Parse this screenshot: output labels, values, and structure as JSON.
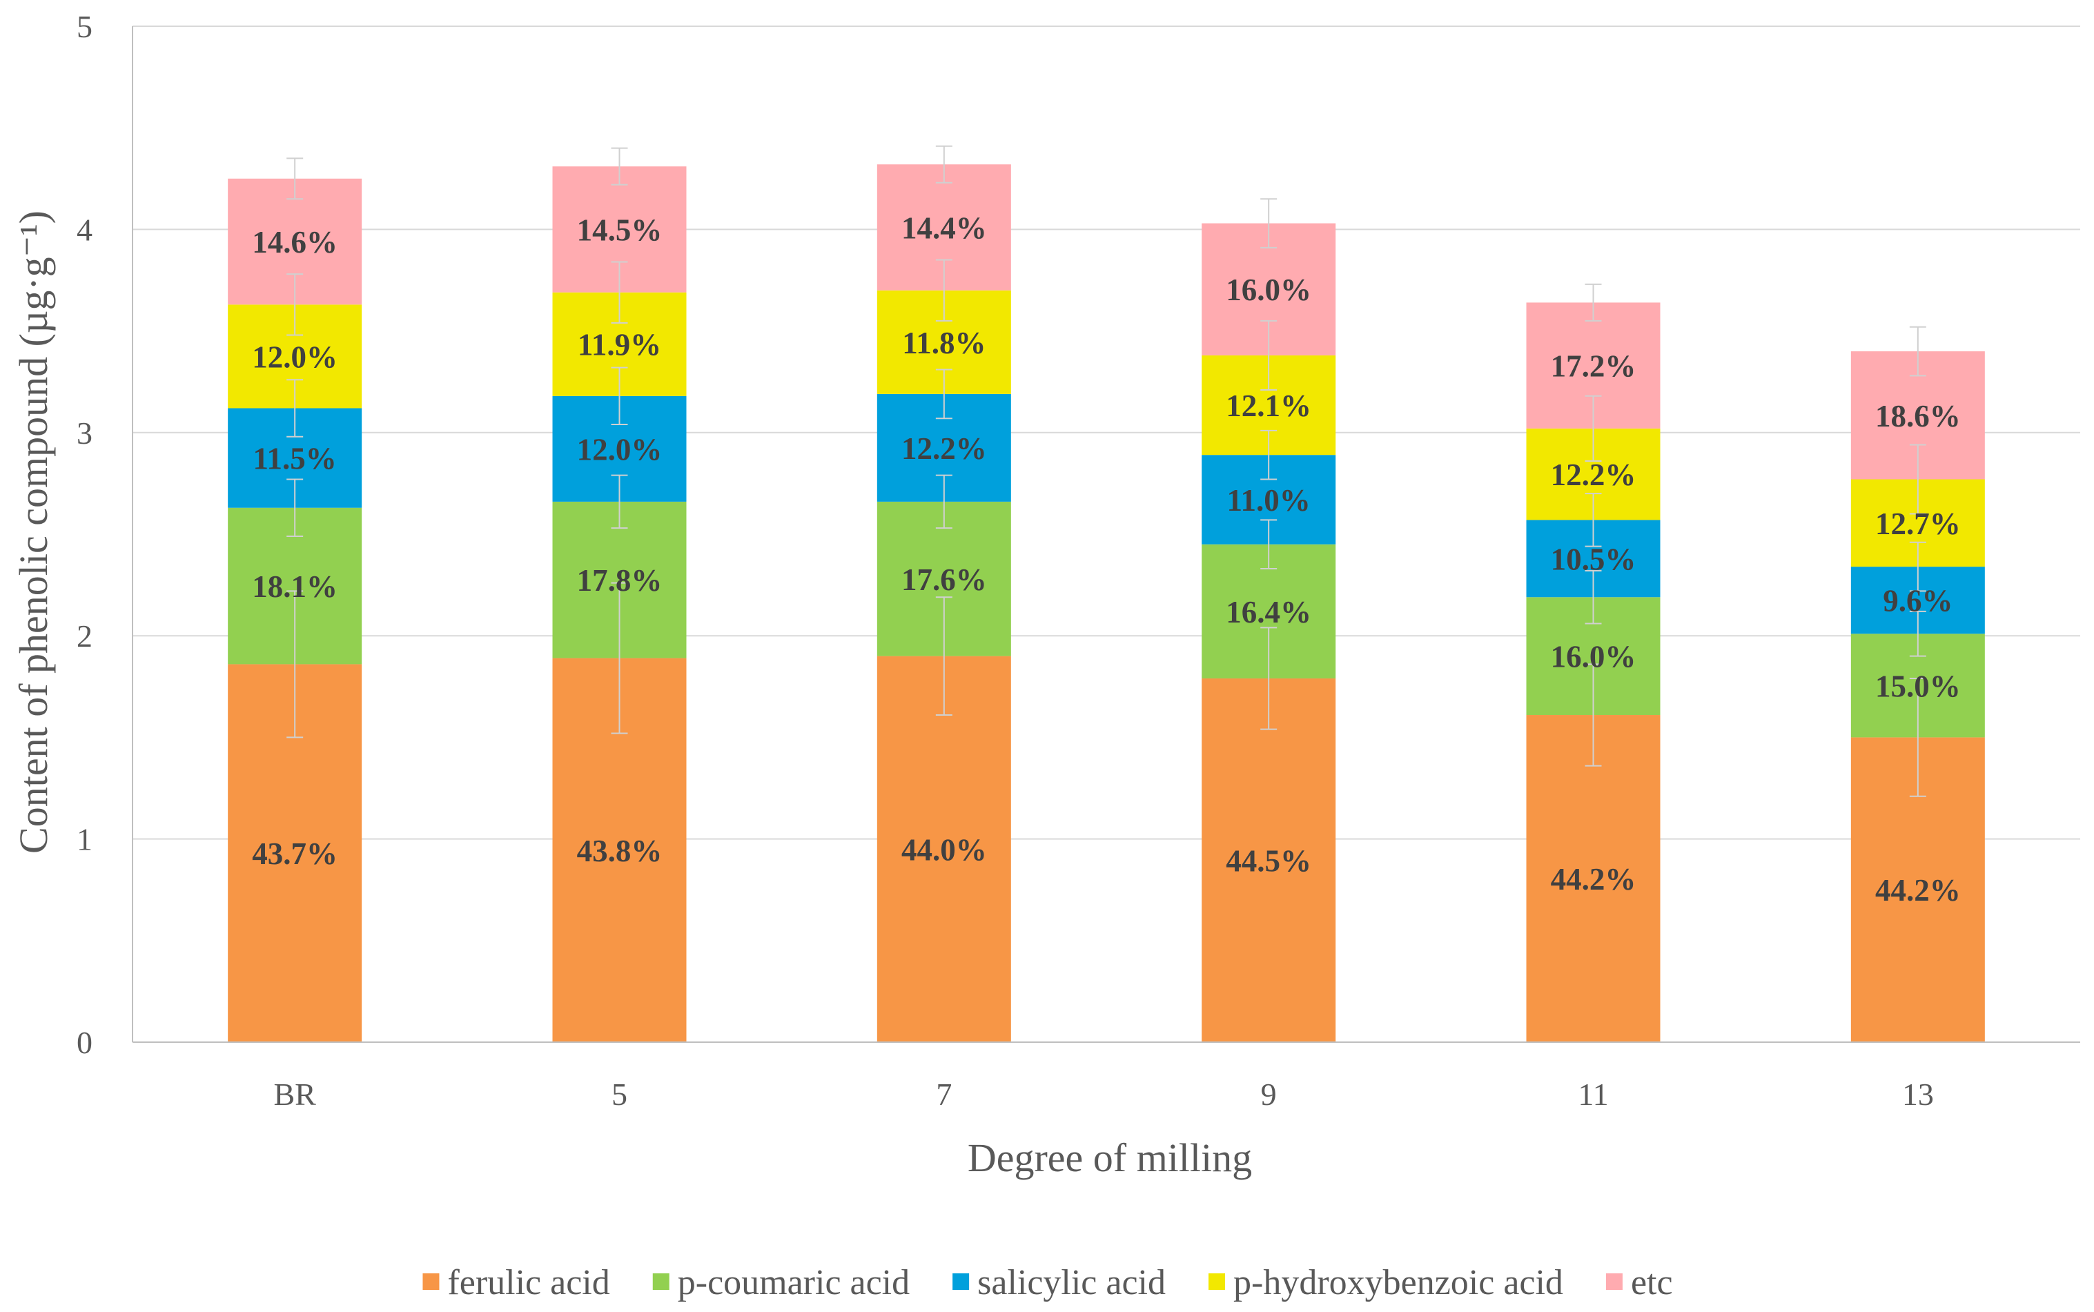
{
  "chart_data": {
    "type": "bar",
    "stacked": true,
    "categories": [
      "BR",
      "5",
      "7",
      "9",
      "11",
      "13"
    ],
    "series": [
      {
        "name": "ferulic acid",
        "color": "#F79646",
        "values": [
          1.86,
          1.89,
          1.9,
          1.79,
          1.61,
          1.5
        ],
        "labels": [
          "43.7%",
          "43.8%",
          "44.0%",
          "44.5%",
          "44.2%",
          "44.2%"
        ],
        "error": [
          0.36,
          0.37,
          0.29,
          0.25,
          0.25,
          0.29
        ]
      },
      {
        "name": "p-coumaric acid",
        "color": "#92D050",
        "values": [
          0.77,
          0.77,
          0.76,
          0.66,
          0.58,
          0.51
        ],
        "labels": [
          "18.1%",
          "17.8%",
          "17.6%",
          "16.4%",
          "16.0%",
          "15.0%"
        ],
        "error": [
          0.14,
          0.13,
          0.13,
          0.12,
          0.13,
          0.11
        ]
      },
      {
        "name": "salicylic acid",
        "color": "#00A0DC",
        "values": [
          0.49,
          0.52,
          0.53,
          0.44,
          0.38,
          0.33
        ],
        "labels": [
          "11.5%",
          "12.0%",
          "12.2%",
          "11.0%",
          "10.5%",
          "9.6%"
        ],
        "error": [
          0.14,
          0.14,
          0.12,
          0.12,
          0.13,
          0.12
        ]
      },
      {
        "name": "p-hydroxybenzoic acid",
        "color": "#F2E800",
        "values": [
          0.51,
          0.51,
          0.51,
          0.49,
          0.45,
          0.43
        ],
        "labels": [
          "12.0%",
          "11.9%",
          "11.8%",
          "12.1%",
          "12.2%",
          "12.7%"
        ],
        "error": [
          0.15,
          0.15,
          0.15,
          0.17,
          0.16,
          0.17
        ]
      },
      {
        "name": "etc",
        "color": "#FFABB0",
        "values": [
          0.62,
          0.62,
          0.62,
          0.65,
          0.62,
          0.63
        ],
        "labels": [
          "14.6%",
          "14.5%",
          "14.4%",
          "16.0%",
          "17.2%",
          "18.6%"
        ],
        "error": [
          0.1,
          0.09,
          0.09,
          0.12,
          0.09,
          0.12
        ]
      }
    ],
    "title": "",
    "xlabel": "Degree of milling",
    "ylabel": "Content of phenolic compound (µg·g⁻¹)",
    "ylim": [
      0,
      5
    ],
    "yticks": [
      0,
      1,
      2,
      3,
      4,
      5
    ],
    "grid": true,
    "legend_position": "bottom"
  },
  "colors": {
    "grid": "#D9D9D9",
    "axis": "#BFBFBF",
    "errorbar": "#D0D0D0"
  }
}
